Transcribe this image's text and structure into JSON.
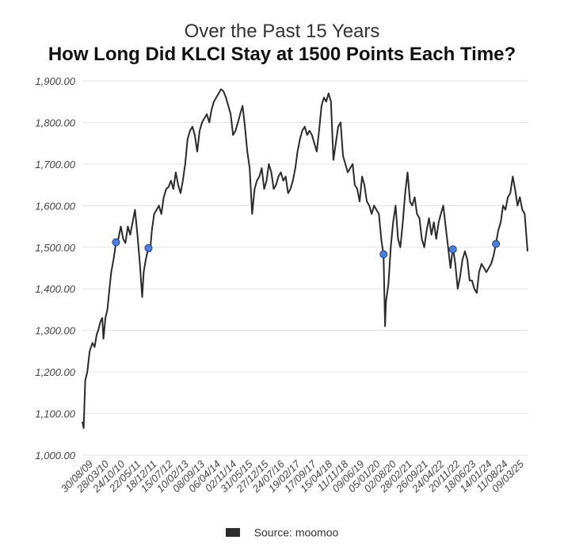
{
  "chart_data": {
    "type": "line",
    "subtitle": "Over the Past 15 Years",
    "title": "How Long Did KLCI Stay at 1500 Points Each Time?",
    "xlabel": "",
    "ylabel": "",
    "ylim": [
      1000,
      1900
    ],
    "yticks": [
      "1,900.00",
      "1,800.00",
      "1,700.00",
      "1,600.00",
      "1,500.00",
      "1,400.00",
      "1,300.00",
      "1,200.00",
      "1,100.00",
      "1,000.00"
    ],
    "ytick_values": [
      1900,
      1800,
      1700,
      1600,
      1500,
      1400,
      1300,
      1200,
      1100,
      1000
    ],
    "xticks": [
      "30/08/09",
      "28/03/10",
      "24/10/10",
      "22/05/11",
      "18/12/11",
      "15/07/12",
      "10/02/13",
      "08/09/13",
      "06/04/14",
      "02/11/14",
      "31/05/15",
      "27/12/15",
      "24/07/16",
      "19/02/17",
      "17/09/17",
      "15/04/18",
      "11/11/18",
      "09/06/19",
      "05/01/20",
      "02/08/20",
      "28/02/21",
      "26/09/21",
      "24/04/22",
      "20/11/22",
      "18/06/23",
      "14/01/24",
      "11/08/24",
      "09/03/25"
    ],
    "x_start": "2009-08-30",
    "x_end": "2025-03-09",
    "grid": true,
    "series": [
      {
        "name": "Source: moomoo",
        "color": "#2b2b2b",
        "points": [
          [
            "2009-08-30",
            1080
          ],
          [
            "2009-09-15",
            1065
          ],
          [
            "2009-10-05",
            1180
          ],
          [
            "2009-11-01",
            1200
          ],
          [
            "2009-12-01",
            1250
          ],
          [
            "2010-01-05",
            1270
          ],
          [
            "2010-02-01",
            1260
          ],
          [
            "2010-03-01",
            1290
          ],
          [
            "2010-03-20",
            1300
          ],
          [
            "2010-04-15",
            1320
          ],
          [
            "2010-05-10",
            1330
          ],
          [
            "2010-05-25",
            1280
          ],
          [
            "2010-06-20",
            1330
          ],
          [
            "2010-07-15",
            1350
          ],
          [
            "2010-08-10",
            1400
          ],
          [
            "2010-09-01",
            1440
          ],
          [
            "2010-10-01",
            1470
          ],
          [
            "2010-11-01",
            1510
          ],
          [
            "2010-12-01",
            1520
          ],
          [
            "2011-01-01",
            1550
          ],
          [
            "2011-02-01",
            1520
          ],
          [
            "2011-03-01",
            1510
          ],
          [
            "2011-04-01",
            1550
          ],
          [
            "2011-05-01",
            1530
          ],
          [
            "2011-06-01",
            1560
          ],
          [
            "2011-07-01",
            1590
          ],
          [
            "2011-08-01",
            1530
          ],
          [
            "2011-09-01",
            1460
          ],
          [
            "2011-10-01",
            1380
          ],
          [
            "2011-10-20",
            1440
          ],
          [
            "2011-11-15",
            1470
          ],
          [
            "2011-12-20",
            1500
          ],
          [
            "2012-01-10",
            1490
          ],
          [
            "2012-02-01",
            1540
          ],
          [
            "2012-03-01",
            1580
          ],
          [
            "2012-04-01",
            1590
          ],
          [
            "2012-05-01",
            1600
          ],
          [
            "2012-06-01",
            1580
          ],
          [
            "2012-07-01",
            1620
          ],
          [
            "2012-08-01",
            1640
          ],
          [
            "2012-09-01",
            1645
          ],
          [
            "2012-10-01",
            1660
          ],
          [
            "2012-11-01",
            1640
          ],
          [
            "2012-12-01",
            1680
          ],
          [
            "2013-01-01",
            1650
          ],
          [
            "2013-02-01",
            1630
          ],
          [
            "2013-03-01",
            1660
          ],
          [
            "2013-04-01",
            1700
          ],
          [
            "2013-05-01",
            1760
          ],
          [
            "2013-06-01",
            1780
          ],
          [
            "2013-07-01",
            1790
          ],
          [
            "2013-08-01",
            1770
          ],
          [
            "2013-09-01",
            1730
          ],
          [
            "2013-10-01",
            1780
          ],
          [
            "2013-11-01",
            1800
          ],
          [
            "2013-12-01",
            1810
          ],
          [
            "2014-01-01",
            1820
          ],
          [
            "2014-02-01",
            1800
          ],
          [
            "2014-03-01",
            1830
          ],
          [
            "2014-04-01",
            1850
          ],
          [
            "2014-05-01",
            1860
          ],
          [
            "2014-06-01",
            1870
          ],
          [
            "2014-07-01",
            1880
          ],
          [
            "2014-08-01",
            1875
          ],
          [
            "2014-09-01",
            1860
          ],
          [
            "2014-10-01",
            1840
          ],
          [
            "2014-11-01",
            1820
          ],
          [
            "2014-12-01",
            1770
          ],
          [
            "2015-01-01",
            1780
          ],
          [
            "2015-02-01",
            1800
          ],
          [
            "2015-03-01",
            1820
          ],
          [
            "2015-04-01",
            1840
          ],
          [
            "2015-05-01",
            1790
          ],
          [
            "2015-06-01",
            1730
          ],
          [
            "2015-07-01",
            1690
          ],
          [
            "2015-08-01",
            1580
          ],
          [
            "2015-09-01",
            1640
          ],
          [
            "2015-10-01",
            1660
          ],
          [
            "2015-11-01",
            1670
          ],
          [
            "2015-12-01",
            1690
          ],
          [
            "2016-01-01",
            1640
          ],
          [
            "2016-02-01",
            1660
          ],
          [
            "2016-03-01",
            1700
          ],
          [
            "2016-04-01",
            1680
          ],
          [
            "2016-05-01",
            1640
          ],
          [
            "2016-06-01",
            1650
          ],
          [
            "2016-07-01",
            1670
          ],
          [
            "2016-08-01",
            1680
          ],
          [
            "2016-09-01",
            1660
          ],
          [
            "2016-10-01",
            1670
          ],
          [
            "2016-11-01",
            1630
          ],
          [
            "2016-12-01",
            1640
          ],
          [
            "2017-01-01",
            1660
          ],
          [
            "2017-02-01",
            1690
          ],
          [
            "2017-03-01",
            1730
          ],
          [
            "2017-04-01",
            1760
          ],
          [
            "2017-05-01",
            1780
          ],
          [
            "2017-06-01",
            1790
          ],
          [
            "2017-07-01",
            1770
          ],
          [
            "2017-08-01",
            1780
          ],
          [
            "2017-09-01",
            1770
          ],
          [
            "2017-10-01",
            1750
          ],
          [
            "2017-11-01",
            1730
          ],
          [
            "2017-12-01",
            1780
          ],
          [
            "2018-01-01",
            1840
          ],
          [
            "2018-02-01",
            1860
          ],
          [
            "2018-03-01",
            1850
          ],
          [
            "2018-04-01",
            1870
          ],
          [
            "2018-05-01",
            1850
          ],
          [
            "2018-06-01",
            1710
          ],
          [
            "2018-07-01",
            1750
          ],
          [
            "2018-08-01",
            1790
          ],
          [
            "2018-09-01",
            1800
          ],
          [
            "2018-10-01",
            1720
          ],
          [
            "2018-11-01",
            1700
          ],
          [
            "2018-12-01",
            1680
          ],
          [
            "2019-01-01",
            1690
          ],
          [
            "2019-02-01",
            1700
          ],
          [
            "2019-03-01",
            1650
          ],
          [
            "2019-04-01",
            1640
          ],
          [
            "2019-05-01",
            1610
          ],
          [
            "2019-06-01",
            1670
          ],
          [
            "2019-07-01",
            1650
          ],
          [
            "2019-08-01",
            1610
          ],
          [
            "2019-09-01",
            1600
          ],
          [
            "2019-10-01",
            1580
          ],
          [
            "2019-11-01",
            1600
          ],
          [
            "2019-12-01",
            1590
          ],
          [
            "2020-01-01",
            1580
          ],
          [
            "2020-02-01",
            1520
          ],
          [
            "2020-03-01",
            1480
          ],
          [
            "2020-03-20",
            1310
          ],
          [
            "2020-04-01",
            1370
          ],
          [
            "2020-05-01",
            1410
          ],
          [
            "2020-06-01",
            1500
          ],
          [
            "2020-07-01",
            1560
          ],
          [
            "2020-08-01",
            1600
          ],
          [
            "2020-09-01",
            1520
          ],
          [
            "2020-10-01",
            1500
          ],
          [
            "2020-11-01",
            1560
          ],
          [
            "2020-12-01",
            1630
          ],
          [
            "2021-01-01",
            1680
          ],
          [
            "2021-02-01",
            1610
          ],
          [
            "2021-03-01",
            1600
          ],
          [
            "2021-04-01",
            1620
          ],
          [
            "2021-05-01",
            1580
          ],
          [
            "2021-06-01",
            1570
          ],
          [
            "2021-07-01",
            1520
          ],
          [
            "2021-08-01",
            1500
          ],
          [
            "2021-09-01",
            1540
          ],
          [
            "2021-10-01",
            1570
          ],
          [
            "2021-11-01",
            1530
          ],
          [
            "2021-12-01",
            1560
          ],
          [
            "2022-01-01",
            1520
          ],
          [
            "2022-02-01",
            1560
          ],
          [
            "2022-03-01",
            1580
          ],
          [
            "2022-04-01",
            1600
          ],
          [
            "2022-05-01",
            1550
          ],
          [
            "2022-06-01",
            1500
          ],
          [
            "2022-07-01",
            1450
          ],
          [
            "2022-08-01",
            1500
          ],
          [
            "2022-09-01",
            1460
          ],
          [
            "2022-10-01",
            1400
          ],
          [
            "2022-11-01",
            1430
          ],
          [
            "2022-12-01",
            1470
          ],
          [
            "2023-01-01",
            1490
          ],
          [
            "2023-02-01",
            1470
          ],
          [
            "2023-03-01",
            1420
          ],
          [
            "2023-04-01",
            1420
          ],
          [
            "2023-05-01",
            1400
          ],
          [
            "2023-06-01",
            1390
          ],
          [
            "2023-07-01",
            1440
          ],
          [
            "2023-08-01",
            1460
          ],
          [
            "2023-09-01",
            1450
          ],
          [
            "2023-10-01",
            1440
          ],
          [
            "2023-11-01",
            1450
          ],
          [
            "2023-12-01",
            1460
          ],
          [
            "2024-01-01",
            1480
          ],
          [
            "2024-02-01",
            1510
          ],
          [
            "2024-03-01",
            1540
          ],
          [
            "2024-04-01",
            1560
          ],
          [
            "2024-05-01",
            1600
          ],
          [
            "2024-06-01",
            1590
          ],
          [
            "2024-07-01",
            1620
          ],
          [
            "2024-08-01",
            1630
          ],
          [
            "2024-09-01",
            1670
          ],
          [
            "2024-10-01",
            1640
          ],
          [
            "2024-11-01",
            1600
          ],
          [
            "2024-12-01",
            1620
          ],
          [
            "2025-01-01",
            1590
          ],
          [
            "2025-02-01",
            1580
          ],
          [
            "2025-03-09",
            1490
          ]
        ]
      }
    ],
    "markers": [
      {
        "x": "2010-11-01",
        "y": 1512,
        "color": "#4a7fe0"
      },
      {
        "x": "2011-12-20",
        "y": 1498,
        "color": "#4a7fe0"
      },
      {
        "x": "2020-03-01",
        "y": 1483,
        "color": "#4a7fe0"
      },
      {
        "x": "2022-08-01",
        "y": 1495,
        "color": "#4a7fe0"
      },
      {
        "x": "2024-02-01",
        "y": 1508,
        "color": "#4a7fe0"
      }
    ],
    "legend": {
      "label": "Source: moomoo",
      "placement": "bottom"
    }
  }
}
